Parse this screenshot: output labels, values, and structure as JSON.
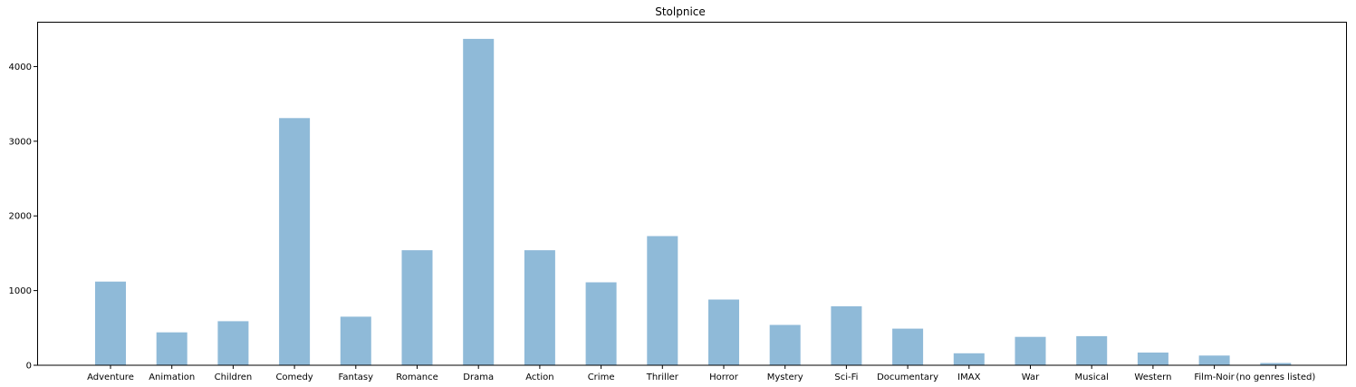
{
  "chart_data": {
    "type": "bar",
    "title": "Stolpnice",
    "xlabel": "",
    "ylabel": "",
    "categories": [
      "Adventure",
      "Animation",
      "Children",
      "Comedy",
      "Fantasy",
      "Romance",
      "Drama",
      "Action",
      "Crime",
      "Thriller",
      "Horror",
      "Mystery",
      "Sci-Fi",
      "Documentary",
      "IMAX",
      "War",
      "Musical",
      "Western",
      "Film-Noir",
      "(no genres listed)"
    ],
    "values": [
      1120,
      440,
      590,
      3310,
      650,
      1540,
      4370,
      1540,
      1110,
      1730,
      880,
      540,
      790,
      490,
      160,
      380,
      390,
      170,
      130,
      30
    ],
    "ylim": [
      0,
      4600
    ],
    "yticks": [
      0,
      1000,
      2000,
      3000,
      4000
    ],
    "grid": false,
    "bar_color": "#8fbad8",
    "axis_color": "#000000"
  }
}
